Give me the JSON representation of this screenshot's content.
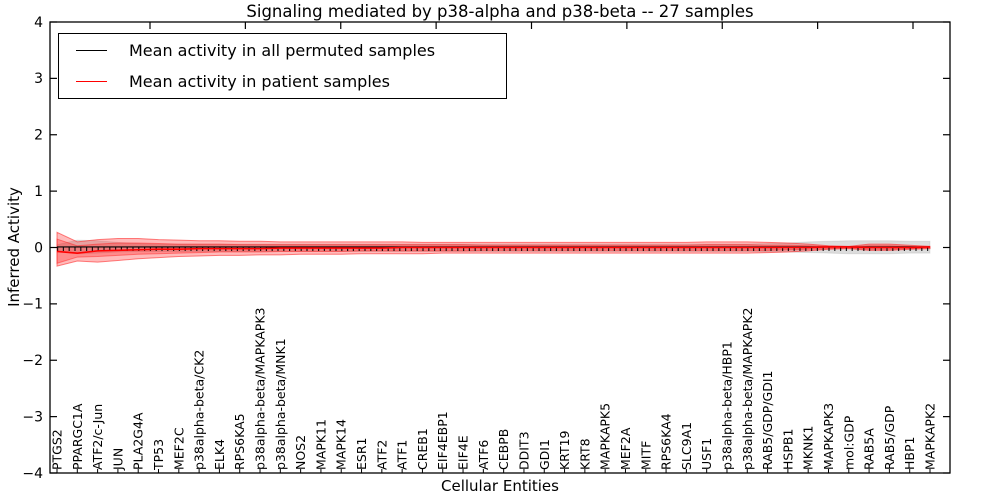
{
  "chart_data": {
    "type": "line",
    "title": "Signaling mediated by p38-alpha and p38-beta -- 27 samples",
    "xlabel": "Cellular Entities",
    "ylabel": "Inferred Activity",
    "ylim": [
      -4,
      4
    ],
    "yticks": [
      4,
      3,
      2,
      1,
      0,
      -1,
      -2,
      -3,
      -4
    ],
    "ytick_labels": [
      "4",
      "3",
      "2",
      "1",
      "0",
      "−1",
      "−2",
      "−3",
      "−4"
    ],
    "grid": false,
    "legend_position": "upper left",
    "categories": [
      "PTGS2",
      "PPARGC1A",
      "ATF2/c-Jun",
      "JUN",
      "PLA2G4A",
      "TP53",
      "MEF2C",
      "p38alpha-beta/CK2",
      "ELK4",
      "RPS6KA5",
      "p38alpha-beta/MAPKAPK3",
      "p38alpha-beta/MNK1",
      "NOS2",
      "MAPK11",
      "MAPK14",
      "ESR1",
      "ATF2",
      "ATF1",
      "CREB1",
      "EIF4EBP1",
      "EIF4E",
      "ATF6",
      "CEBPB",
      "DDIT3",
      "GDI1",
      "KRT19",
      "KRT8",
      "MAPKAPK5",
      "MEF2A",
      "MITF",
      "RPS6KA4",
      "SLC9A1",
      "USF1",
      "p38alpha-beta/HBP1",
      "p38alpha-beta/MAPKAPK2",
      "RAB5/GDP/GDI1",
      "HSPB1",
      "MKNK1",
      "MAPKAPK3",
      "mol:GDP",
      "RAB5A",
      "RAB5/GDP",
      "HBP1",
      "MAPKAPK2"
    ],
    "series": [
      {
        "name": "Mean activity in all permuted samples",
        "color": "#000000",
        "markers": "vertical-dashes",
        "values": [
          0.01,
          0.01,
          0.01,
          0.01,
          0.01,
          0.01,
          0.01,
          0.01,
          0.01,
          0.01,
          0.01,
          0.01,
          0.01,
          0.01,
          0.01,
          0.01,
          0.01,
          0.01,
          0.01,
          0.01,
          0.01,
          0.01,
          0.01,
          0.01,
          0.01,
          0.01,
          0.01,
          0.01,
          0.01,
          0.01,
          0.01,
          0.01,
          0.01,
          0.01,
          0.01,
          0.01,
          0.01,
          0.01,
          0.01,
          0.01,
          0.01,
          0.01,
          0.01,
          0.01
        ]
      },
      {
        "name": "Mean activity in patient samples",
        "color": "#ff0000",
        "markers": null,
        "values": [
          -0.07,
          -0.1,
          -0.06,
          -0.05,
          -0.04,
          -0.03,
          -0.03,
          -0.02,
          -0.02,
          -0.02,
          -0.02,
          -0.01,
          -0.01,
          -0.01,
          -0.01,
          -0.01,
          -0.01,
          0,
          0,
          0,
          0,
          0,
          0,
          0,
          0,
          0,
          0,
          0,
          0,
          0,
          0,
          0,
          0,
          0,
          0,
          0,
          0,
          0,
          0.01,
          0.01,
          0,
          0,
          0,
          0.01
        ]
      }
    ],
    "bands": [
      {
        "name": "permuted-sample-range",
        "fill": "#808080",
        "opacity": 0.28,
        "edge_opacity": 0.18,
        "upper": [
          0.05,
          0.13,
          0.12,
          0.09,
          0.07,
          0.06,
          0.06,
          0.06,
          0.06,
          0.06,
          0.06,
          0.06,
          0.06,
          0.06,
          0.06,
          0.06,
          0.06,
          0.06,
          0.06,
          0.06,
          0.06,
          0.06,
          0.06,
          0.06,
          0.06,
          0.06,
          0.06,
          0.06,
          0.06,
          0.06,
          0.06,
          0.06,
          0.06,
          0.06,
          0.06,
          0.07,
          0.08,
          0.1,
          0.11,
          0.12,
          0.12,
          0.12,
          0.11,
          0.11
        ],
        "lower": [
          -0.06,
          -0.11,
          -0.1,
          -0.08,
          -0.07,
          -0.07,
          -0.07,
          -0.07,
          -0.07,
          -0.07,
          -0.07,
          -0.07,
          -0.07,
          -0.07,
          -0.07,
          -0.07,
          -0.07,
          -0.07,
          -0.07,
          -0.07,
          -0.07,
          -0.07,
          -0.07,
          -0.07,
          -0.07,
          -0.07,
          -0.07,
          -0.07,
          -0.07,
          -0.07,
          -0.07,
          -0.07,
          -0.07,
          -0.07,
          -0.07,
          -0.08,
          -0.08,
          -0.09,
          -0.1,
          -0.11,
          -0.11,
          -0.11,
          -0.1,
          -0.1
        ]
      },
      {
        "name": "patient-outer-band",
        "fill": "#ff1e1e",
        "opacity": 0.3,
        "edge_opacity": 0.55,
        "upper": [
          0.27,
          0.1,
          0.14,
          0.16,
          0.16,
          0.14,
          0.13,
          0.12,
          0.12,
          0.11,
          0.11,
          0.1,
          0.1,
          0.1,
          0.1,
          0.1,
          0.1,
          0.1,
          0.09,
          0.09,
          0.09,
          0.09,
          0.09,
          0.09,
          0.09,
          0.09,
          0.09,
          0.09,
          0.09,
          0.09,
          0.09,
          0.09,
          0.1,
          0.1,
          0.1,
          0.09,
          0.08,
          0.06,
          0.03,
          0.02,
          0.06,
          0.06,
          0.04,
          0.02
        ],
        "lower": [
          -0.33,
          -0.24,
          -0.26,
          -0.23,
          -0.2,
          -0.18,
          -0.16,
          -0.15,
          -0.14,
          -0.14,
          -0.13,
          -0.13,
          -0.12,
          -0.12,
          -0.12,
          -0.11,
          -0.11,
          -0.11,
          -0.11,
          -0.1,
          -0.1,
          -0.1,
          -0.1,
          -0.1,
          -0.1,
          -0.1,
          -0.1,
          -0.1,
          -0.1,
          -0.1,
          -0.1,
          -0.1,
          -0.1,
          -0.1,
          -0.1,
          -0.09,
          -0.08,
          -0.06,
          -0.03,
          -0.02,
          -0.05,
          -0.05,
          -0.03,
          -0.02
        ]
      },
      {
        "name": "patient-inner-band",
        "fill": "#ff1e1e",
        "opacity": 0.3,
        "edge_opacity": 0.45,
        "upper": [
          0.15,
          0.03,
          0.06,
          0.08,
          0.08,
          0.07,
          0.06,
          0.06,
          0.06,
          0.05,
          0.05,
          0.05,
          0.05,
          0.05,
          0.05,
          0.05,
          0.05,
          0.05,
          0.05,
          0.05,
          0.05,
          0.04,
          0.04,
          0.04,
          0.04,
          0.04,
          0.04,
          0.04,
          0.04,
          0.04,
          0.04,
          0.04,
          0.05,
          0.05,
          0.05,
          0.04,
          0.04,
          0.03,
          0.02,
          0.01,
          0.03,
          0.03,
          0.02,
          0.01
        ],
        "lower": [
          -0.28,
          -0.17,
          -0.16,
          -0.14,
          -0.12,
          -0.11,
          -0.1,
          -0.09,
          -0.08,
          -0.08,
          -0.08,
          -0.07,
          -0.07,
          -0.07,
          -0.07,
          -0.06,
          -0.06,
          -0.06,
          -0.06,
          -0.06,
          -0.06,
          -0.05,
          -0.05,
          -0.05,
          -0.05,
          -0.05,
          -0.05,
          -0.05,
          -0.05,
          -0.05,
          -0.05,
          -0.05,
          -0.05,
          -0.05,
          -0.05,
          -0.05,
          -0.04,
          -0.03,
          -0.02,
          -0.01,
          -0.03,
          -0.03,
          -0.02,
          -0.01
        ]
      }
    ]
  }
}
